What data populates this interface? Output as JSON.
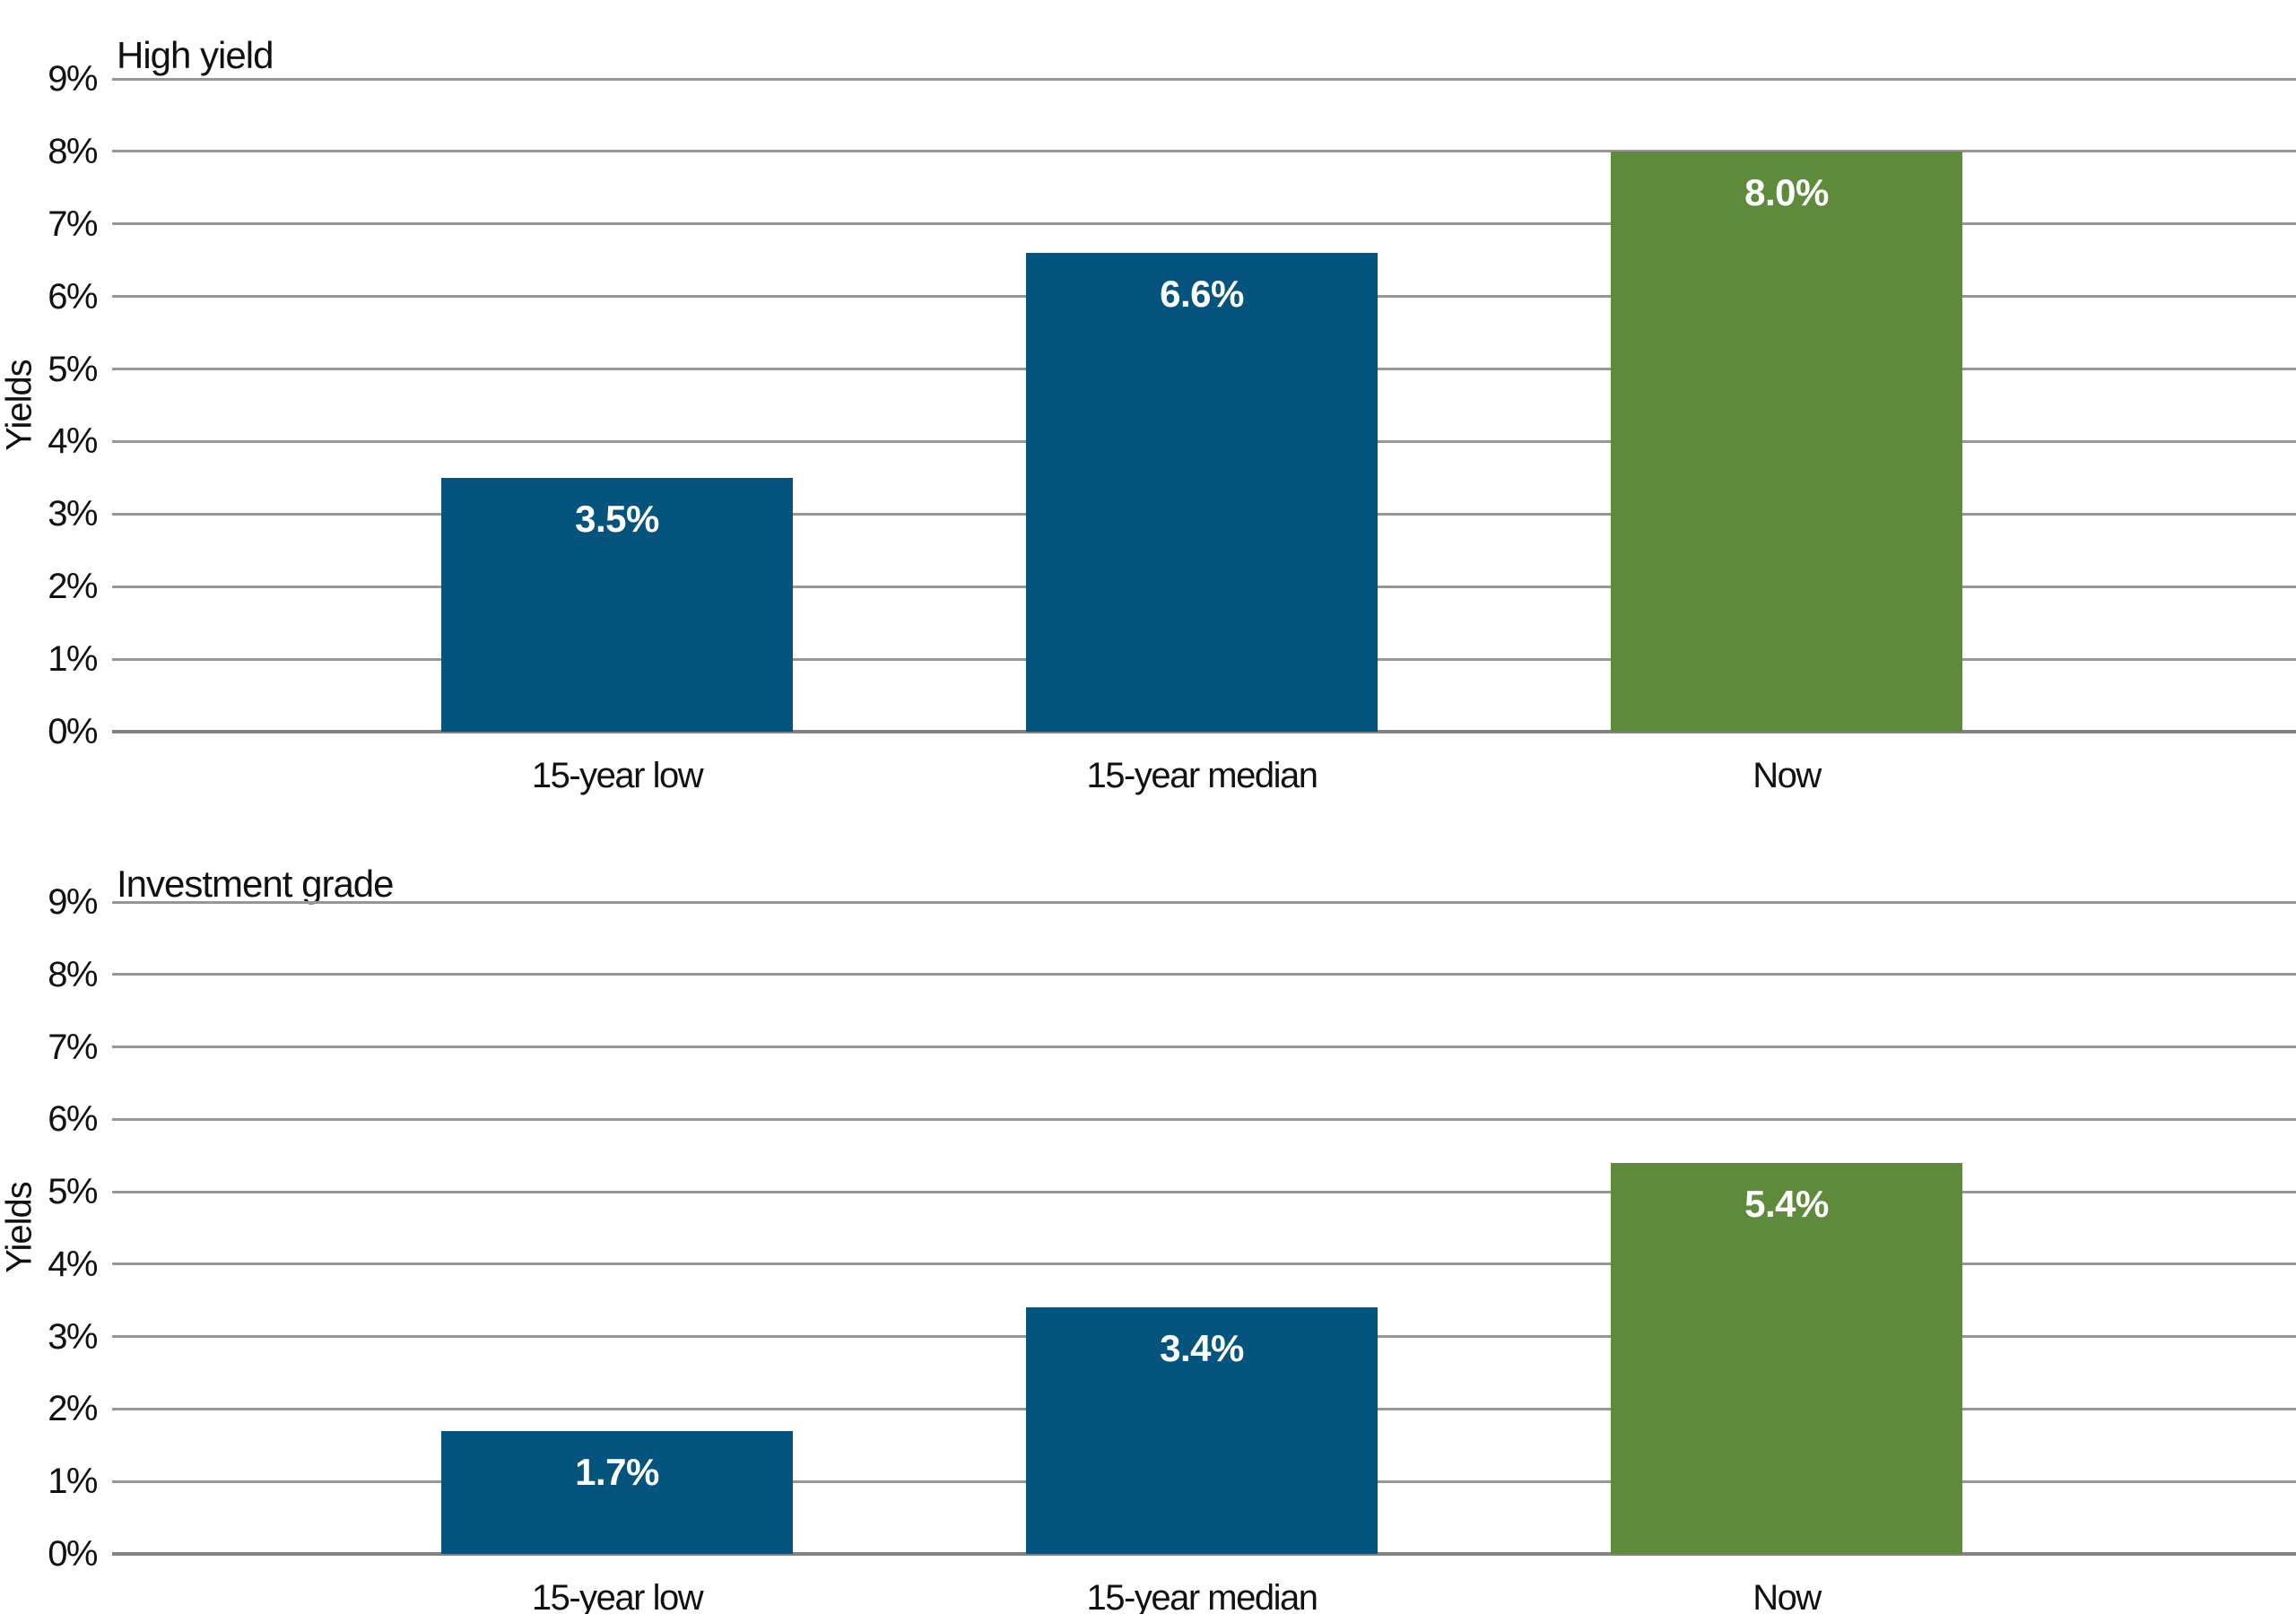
{
  "chart_data": [
    {
      "type": "bar",
      "title": "High yield",
      "ylabel": "Yields",
      "categories": [
        "15-year low",
        "15-year median",
        "Now"
      ],
      "values": [
        3.5,
        6.6,
        8.0
      ],
      "value_labels": [
        "3.5%",
        "6.6%",
        "8.0%"
      ],
      "bar_color_keys": [
        "blue",
        "blue",
        "green"
      ],
      "ytick_labels": [
        "0%",
        "1%",
        "2%",
        "3%",
        "4%",
        "5%",
        "6%",
        "7%",
        "8%",
        "9%"
      ],
      "ylim": [
        0,
        9
      ],
      "grid": true,
      "legend": "none",
      "xlabel": ""
    },
    {
      "type": "bar",
      "title": "Investment grade",
      "ylabel": "Yields",
      "categories": [
        "15-year low",
        "15-year median",
        "Now"
      ],
      "values": [
        1.7,
        3.4,
        5.4
      ],
      "value_labels": [
        "1.7%",
        "3.4%",
        "5.4%"
      ],
      "bar_color_keys": [
        "blue",
        "blue",
        "green"
      ],
      "ytick_labels": [
        "0%",
        "1%",
        "2%",
        "3%",
        "4%",
        "5%",
        "6%",
        "7%",
        "8%",
        "9%"
      ],
      "ylim": [
        0,
        9
      ],
      "grid": true,
      "legend": "none",
      "xlabel": ""
    }
  ],
  "colors": {
    "blue": "#05547E",
    "green": "#5E8A3B",
    "gridline": "#969696",
    "baseline": "#828282",
    "value_label_text": "#ffffff",
    "text": "#111111",
    "background": "#ffffff"
  }
}
